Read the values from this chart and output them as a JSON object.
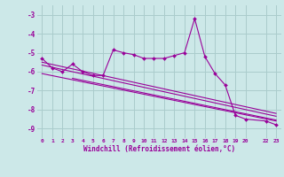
{
  "title": "",
  "xlabel": "Windchill (Refroidissement éolien,°C)",
  "background_color": "#cce8e8",
  "grid_color": "#aacccc",
  "line_color": "#990099",
  "xlim": [
    -0.5,
    23.5
  ],
  "ylim": [
    -9.5,
    -2.5
  ],
  "yticks": [
    -9,
    -8,
    -7,
    -6,
    -5,
    -4,
    -3
  ],
  "xtick_positions": [
    0,
    1,
    2,
    3,
    4,
    5,
    6,
    7,
    8,
    9,
    10,
    11,
    12,
    13,
    14,
    15,
    16,
    17,
    18,
    19,
    20,
    22,
    23
  ],
  "xtick_labels": [
    "0",
    "1",
    "2",
    "3",
    "4",
    "5",
    "6",
    "7",
    "8",
    "9",
    "10",
    "11",
    "12",
    "13",
    "14",
    "15",
    "16",
    "17",
    "18",
    "19",
    "20",
    "22",
    "23"
  ],
  "main_line_x": [
    0,
    1,
    2,
    3,
    4,
    5,
    6,
    7,
    8,
    9,
    10,
    11,
    12,
    13,
    14,
    15,
    16,
    17,
    18,
    19,
    20,
    22,
    23
  ],
  "main_line_y": [
    -5.3,
    -5.8,
    -6.0,
    -5.6,
    -6.0,
    -6.2,
    -6.2,
    -4.85,
    -5.0,
    -5.1,
    -5.3,
    -5.3,
    -5.3,
    -5.15,
    -5.0,
    -3.2,
    -5.2,
    -6.1,
    -6.7,
    -8.3,
    -8.5,
    -8.6,
    -8.8
  ],
  "trend1_x": [
    0,
    23
  ],
  "trend1_y": [
    -5.5,
    -8.2
  ],
  "trend2_x": [
    0,
    23
  ],
  "trend2_y": [
    -5.65,
    -8.35
  ],
  "trend3_x": [
    0,
    23
  ],
  "trend3_y": [
    -6.1,
    -8.6
  ],
  "trend4_x": [
    3,
    23
  ],
  "trend4_y": [
    -6.35,
    -8.55
  ]
}
